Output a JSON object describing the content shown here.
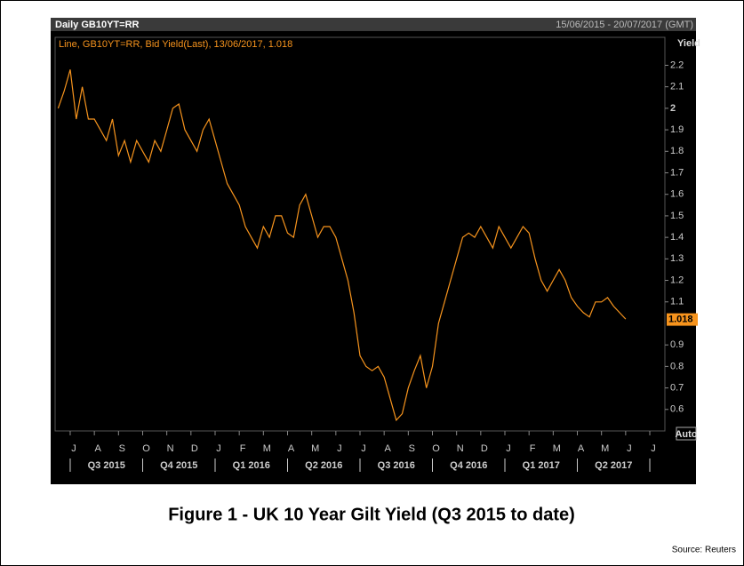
{
  "chart_data": {
    "type": "line",
    "header": "Daily GB10YT=RR",
    "date_range": "15/06/2015 - 20/07/2017 (GMT)",
    "y_label": "Yield",
    "auto_button": "Auto",
    "last_value": 1.018,
    "title": "Figure 1  -  UK 10 Year Gilt Yield (Q3 2015 to date)",
    "source": "Source: Reuters",
    "categories": [
      null,
      null,
      "J",
      null,
      null,
      null,
      "A",
      null,
      null,
      null,
      "S",
      null,
      null,
      null,
      "O",
      null,
      null,
      null,
      "N",
      null,
      null,
      null,
      "D",
      null,
      null,
      null,
      "J",
      null,
      null,
      null,
      "F",
      null,
      null,
      null,
      "M",
      null,
      null,
      null,
      "A",
      null,
      null,
      null,
      "M",
      null,
      null,
      null,
      "J",
      null,
      null,
      null,
      "J",
      null,
      null,
      null,
      "A",
      null,
      null,
      null,
      "S",
      null,
      null,
      null,
      "O",
      null,
      null,
      null,
      "N",
      null,
      null,
      null,
      "D",
      null,
      null,
      null,
      "J",
      null,
      null,
      null,
      "F",
      null,
      null,
      null,
      "M",
      null,
      null,
      null,
      "A",
      null,
      null,
      null,
      "M",
      null,
      null,
      null,
      "J",
      null,
      null,
      null,
      "J",
      null,
      null
    ],
    "quarters": [
      "Q3 2015",
      "Q4 2015",
      "Q1 2016",
      "Q2 2016",
      "Q3 2016",
      "Q4 2016",
      "Q1 2017",
      "Q2 2017"
    ],
    "series": [
      {
        "name": "Line, GB10YT=RR, Bid Yield(Last), 13/06/2017, 1.018",
        "color": "#f7941d",
        "values": [
          2.0,
          2.08,
          2.18,
          1.95,
          2.1,
          1.95,
          1.95,
          1.9,
          1.85,
          1.95,
          1.78,
          1.85,
          1.75,
          1.85,
          1.8,
          1.75,
          1.85,
          1.8,
          1.9,
          2.0,
          2.02,
          1.9,
          1.85,
          1.8,
          1.9,
          1.95,
          1.85,
          1.75,
          1.65,
          1.6,
          1.55,
          1.45,
          1.4,
          1.35,
          1.45,
          1.4,
          1.5,
          1.5,
          1.42,
          1.4,
          1.55,
          1.6,
          1.5,
          1.4,
          1.45,
          1.45,
          1.4,
          1.3,
          1.2,
          1.05,
          0.85,
          0.8,
          0.78,
          0.8,
          0.75,
          0.65,
          0.55,
          0.58,
          0.7,
          0.78,
          0.85,
          0.7,
          0.8,
          1.0,
          1.1,
          1.2,
          1.3,
          1.4,
          1.42,
          1.4,
          1.45,
          1.4,
          1.35,
          1.45,
          1.4,
          1.35,
          1.4,
          1.45,
          1.42,
          1.3,
          1.2,
          1.15,
          1.2,
          1.25,
          1.2,
          1.12,
          1.08,
          1.05,
          1.03,
          1.1,
          1.1,
          1.12,
          1.08,
          1.05,
          1.02,
          null,
          null,
          null,
          null,
          null,
          null
        ]
      }
    ],
    "ylim": [
      0.5,
      2.33
    ],
    "yticks": [
      0.6,
      0.7,
      0.8,
      0.9,
      1.1,
      1.2,
      1.3,
      1.4,
      1.5,
      1.6,
      1.7,
      1.8,
      1.9,
      2,
      2.1,
      2.2
    ],
    "grid": false
  }
}
